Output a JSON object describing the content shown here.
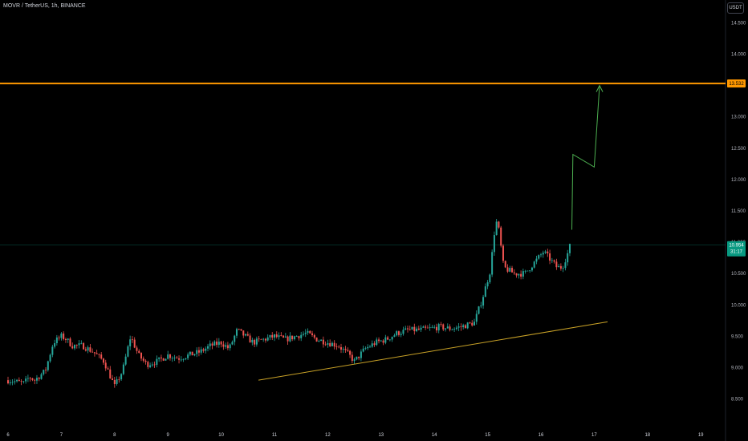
{
  "header": {
    "symbol_title": "MOVR / TetherUS, 1h, BINANCE",
    "currency_button": "USDT"
  },
  "colors": {
    "background": "#000000",
    "up_candle": "#26a69a",
    "down_candle": "#ef5350",
    "resistance_line": "#ff9800",
    "trendline": "#c9a227",
    "projection": "#4caf50",
    "price_tag": "#089981"
  },
  "chart_data": {
    "type": "candlestick",
    "x_axis": {
      "type": "time",
      "tick_labels": [
        "6",
        "7",
        "8",
        "9",
        "10",
        "11",
        "12",
        "13",
        "14",
        "15",
        "16",
        "17",
        "18",
        "19"
      ]
    },
    "y_axis": {
      "position": "right",
      "range": [
        8.35,
        14.75
      ],
      "tick_labels": [
        "8.500",
        "9.000",
        "9.500",
        "10.000",
        "10.500",
        "11.000",
        "11.500",
        "12.000",
        "12.500",
        "13.000",
        "13.500",
        "14.000",
        "14.500"
      ]
    },
    "grid": false,
    "resistance_level": {
      "value": 13.532,
      "label": "13.532"
    },
    "last_price": {
      "value": 10.954,
      "label": "10.954",
      "countdown": "31:17"
    },
    "trendline": {
      "from": {
        "day": 10.7,
        "price": 8.8
      },
      "to": {
        "day": 17.25,
        "price": 9.73
      }
    },
    "projection_path": [
      {
        "day": 16.58,
        "price": 11.2
      },
      {
        "day": 16.6,
        "price": 12.4
      },
      {
        "day": 17.0,
        "price": 12.2
      },
      {
        "day": 17.1,
        "price": 13.5
      }
    ],
    "price_path": [
      [
        6.0,
        8.8
      ],
      [
        6.3,
        8.75
      ],
      [
        6.4,
        8.85
      ],
      [
        6.5,
        8.8
      ],
      [
        6.7,
        8.95
      ],
      [
        6.85,
        9.4
      ],
      [
        7.0,
        9.5
      ],
      [
        7.1,
        9.45
      ],
      [
        7.2,
        9.35
      ],
      [
        7.4,
        9.35
      ],
      [
        7.6,
        9.25
      ],
      [
        7.8,
        9.1
      ],
      [
        7.9,
        8.9
      ],
      [
        8.0,
        8.7
      ],
      [
        8.15,
        8.95
      ],
      [
        8.3,
        9.5
      ],
      [
        8.45,
        9.2
      ],
      [
        8.6,
        9.05
      ],
      [
        8.8,
        9.1
      ],
      [
        9.0,
        9.2
      ],
      [
        9.2,
        9.15
      ],
      [
        9.4,
        9.2
      ],
      [
        9.6,
        9.25
      ],
      [
        9.8,
        9.35
      ],
      [
        10.0,
        9.4
      ],
      [
        10.15,
        9.3
      ],
      [
        10.3,
        9.6
      ],
      [
        10.45,
        9.5
      ],
      [
        10.6,
        9.4
      ],
      [
        10.8,
        9.45
      ],
      [
        11.0,
        9.5
      ],
      [
        11.2,
        9.45
      ],
      [
        11.4,
        9.5
      ],
      [
        11.6,
        9.55
      ],
      [
        11.8,
        9.45
      ],
      [
        12.0,
        9.4
      ],
      [
        12.2,
        9.35
      ],
      [
        12.4,
        9.2
      ],
      [
        12.5,
        9.1
      ],
      [
        12.7,
        9.3
      ],
      [
        12.9,
        9.4
      ],
      [
        13.1,
        9.45
      ],
      [
        13.3,
        9.55
      ],
      [
        13.5,
        9.6
      ],
      [
        13.7,
        9.6
      ],
      [
        13.9,
        9.62
      ],
      [
        14.1,
        9.65
      ],
      [
        14.3,
        9.62
      ],
      [
        14.5,
        9.65
      ],
      [
        14.75,
        9.72
      ],
      [
        14.9,
        10.1
      ],
      [
        15.05,
        10.55
      ],
      [
        15.15,
        11.35
      ],
      [
        15.2,
        11.25
      ],
      [
        15.3,
        10.6
      ],
      [
        15.5,
        10.5
      ],
      [
        15.7,
        10.5
      ],
      [
        15.9,
        10.7
      ],
      [
        16.05,
        10.85
      ],
      [
        16.2,
        10.7
      ],
      [
        16.3,
        10.6
      ],
      [
        16.4,
        10.6
      ],
      [
        16.5,
        10.82
      ],
      [
        16.55,
        10.954
      ]
    ]
  }
}
